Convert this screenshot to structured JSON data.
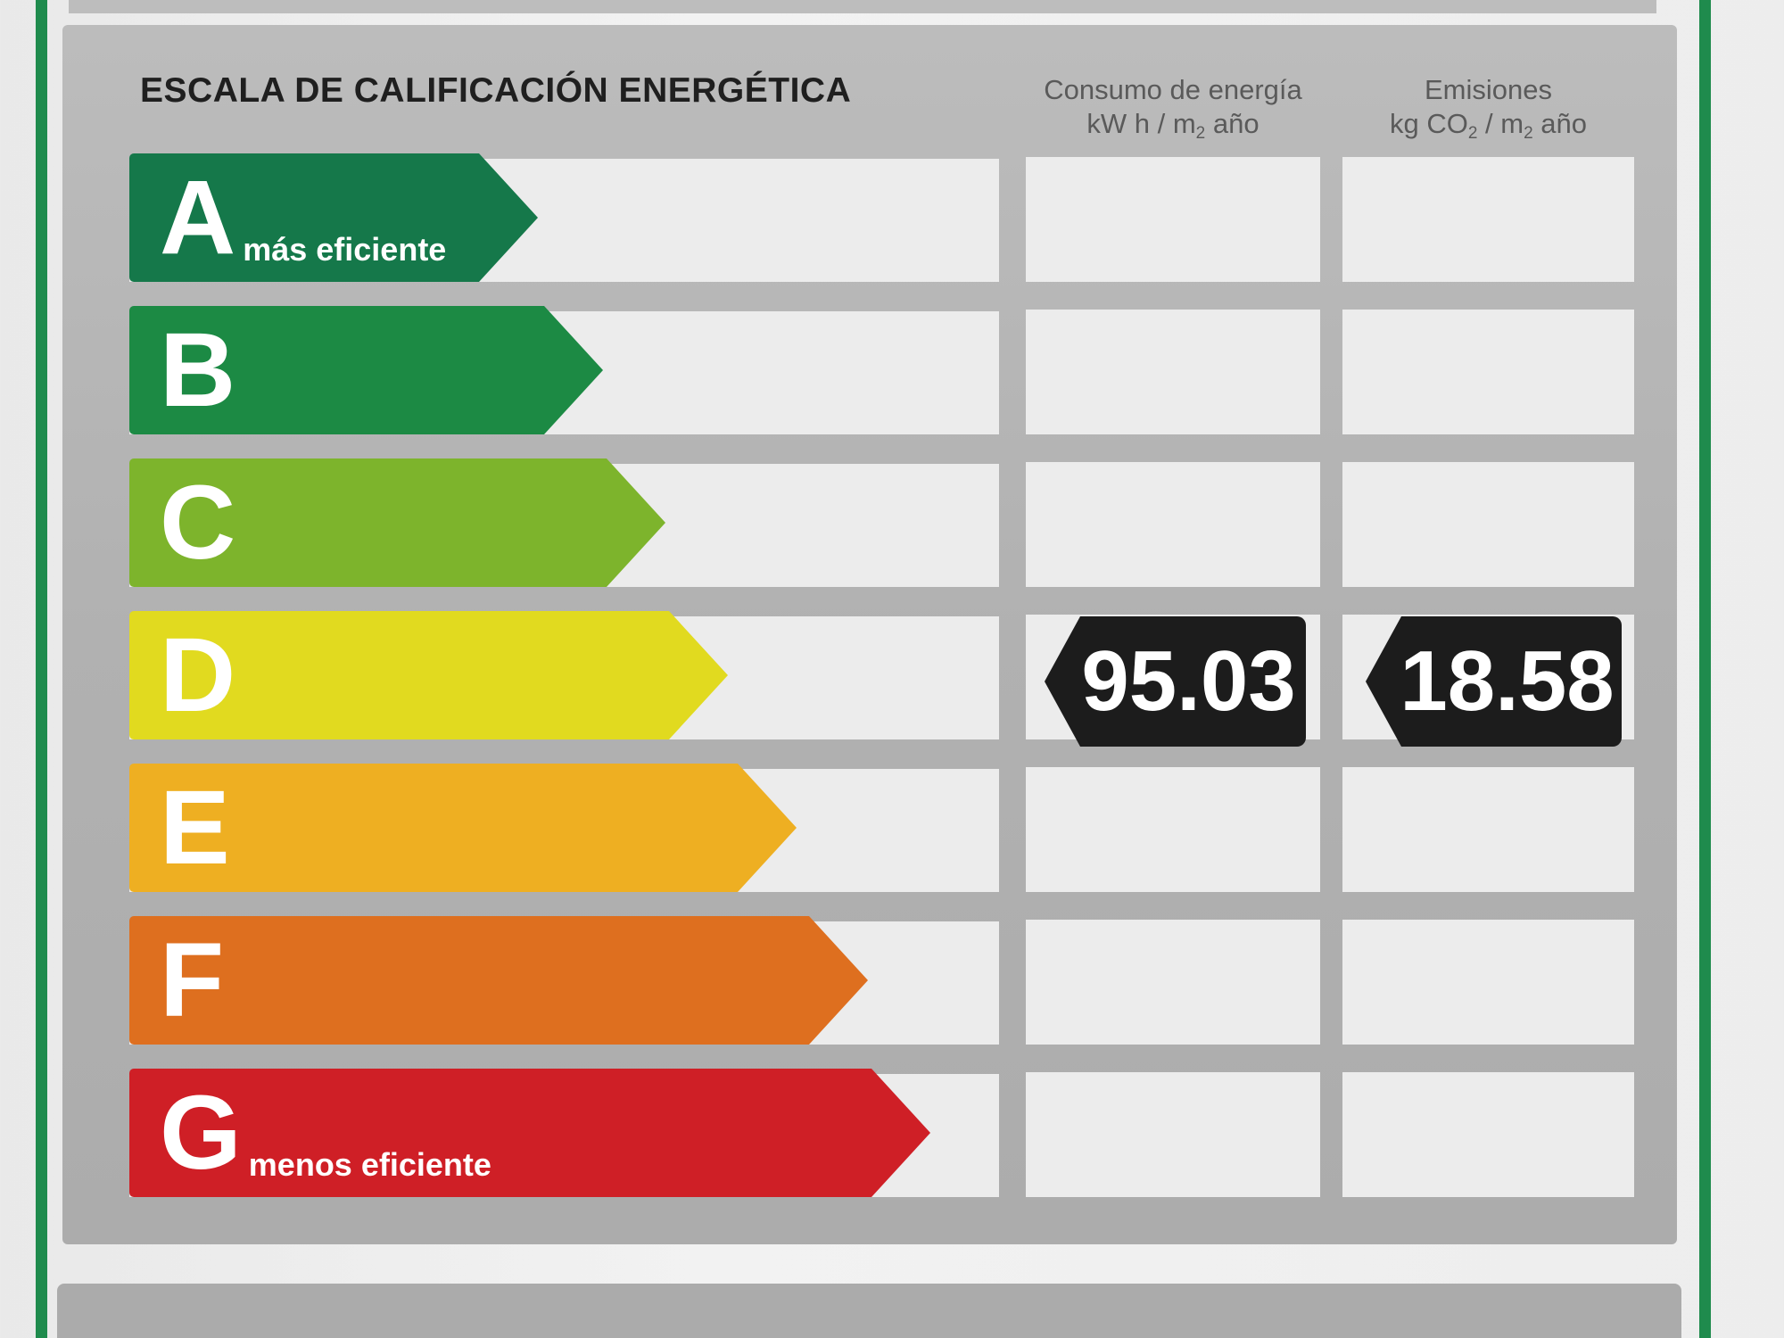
{
  "title": "ESCALA DE CALIFICACIÓN ENERGÉTICA",
  "header": {
    "consumption": {
      "line1": "Consumo de energía",
      "unit_a": "kW h / m",
      "unit_sub": "2",
      "unit_b": " año"
    },
    "emissions": {
      "line1": "Emisiones",
      "unit_a": "kg CO",
      "unit_sub1": "2",
      "unit_b": " / m",
      "unit_sub2": "2",
      "unit_c": " año"
    }
  },
  "ratings": [
    {
      "letter": "A",
      "caption": "más eficiente",
      "color": "#15784a"
    },
    {
      "letter": "B",
      "color": "#1c8a44"
    },
    {
      "letter": "C",
      "color": "#7db42c"
    },
    {
      "letter": "D",
      "color": "#e1da1f"
    },
    {
      "letter": "E",
      "color": "#eeaf22"
    },
    {
      "letter": "F",
      "color": "#de6f1f"
    },
    {
      "letter": "G",
      "caption": "menos eficiente",
      "color": "#cf1f26"
    }
  ],
  "current": {
    "rating": "D",
    "consumption": "95.03",
    "emissions": "18.58",
    "badge_color": "#1c1c1c"
  },
  "colors": {
    "frame_green": "#1f8b4d"
  }
}
